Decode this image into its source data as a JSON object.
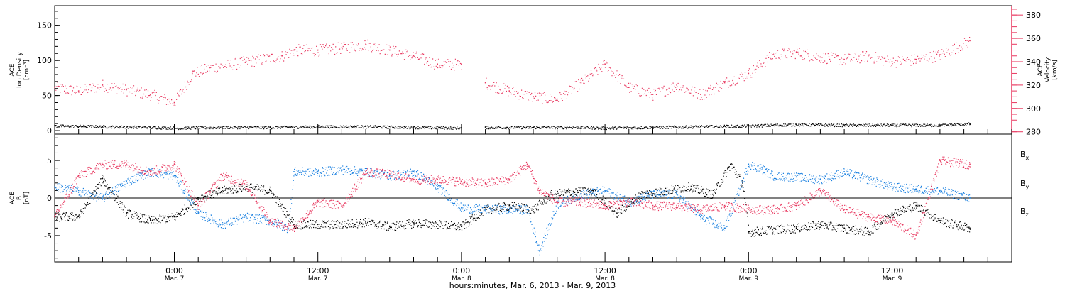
{
  "colors": {
    "black": "#000000",
    "blue": "#1a80e0",
    "pink": "#e8375f"
  },
  "x_axis": {
    "xlabel": "hours:minutes, Mar. 6, 2013 - Mar. 9, 2013",
    "hour_range": [
      -10,
      70
    ],
    "ticks": [
      {
        "time": "0:00",
        "date": "Mar. 7",
        "hour": 0
      },
      {
        "time": "12:00",
        "date": "Mar. 7",
        "hour": 12
      },
      {
        "time": "0:00",
        "date": "Mar. 8",
        "hour": 24
      },
      {
        "time": "12:00",
        "date": "Mar. 8",
        "hour": 36
      },
      {
        "time": "0:00",
        "date": "Mar. 9",
        "hour": 48
      },
      {
        "time": "12:00",
        "date": "Mar. 9",
        "hour": 60
      }
    ]
  },
  "chart_data": [
    {
      "type": "scatter",
      "title": "",
      "ylabel": "ACE Ion Density [cm⁻³]",
      "ylabel_lines": [
        "ACE",
        "Ion Density",
        "[cm⁻³]"
      ],
      "ylim": [
        -5,
        178
      ],
      "yticks": [
        0,
        50,
        100,
        150
      ],
      "y2label": "ACE Velocity [km/s]",
      "y2label_lines": [
        "ACE",
        "Velocity",
        "[km/s]"
      ],
      "y2lim": [
        278,
        388
      ],
      "y2ticks": [
        280,
        300,
        320,
        340,
        360,
        380
      ],
      "series": [
        {
          "axis": "left",
          "color": "black",
          "x": [
            -10,
            -6,
            -2,
            0,
            4,
            8,
            12,
            16,
            20,
            24,
            24.8,
            26,
            30,
            34,
            36,
            40,
            44,
            48,
            52,
            56,
            60,
            64,
            66.5
          ],
          "y": [
            7,
            6,
            5,
            4,
            5,
            5,
            6,
            6,
            5,
            4,
            null,
            5,
            5,
            5,
            4,
            5,
            6,
            7,
            9,
            8,
            8,
            8,
            10
          ]
        },
        {
          "axis": "right",
          "color": "pink",
          "x": [
            -10,
            -8,
            -6,
            -4,
            -2,
            0,
            1.5,
            3,
            6,
            9,
            10,
            12,
            14,
            16,
            18,
            20,
            22,
            24,
            24.8,
            26,
            28,
            30,
            32,
            34,
            36,
            38,
            40,
            42,
            44,
            46,
            48,
            50,
            52,
            54,
            56,
            58,
            60,
            62,
            64,
            66.5
          ],
          "y": [
            318,
            315,
            320,
            316,
            312,
            305,
            330,
            335,
            340,
            345,
            350,
            350,
            352,
            355,
            350,
            345,
            338,
            338,
            null,
            322,
            315,
            310,
            308,
            322,
            338,
            318,
            312,
            320,
            312,
            322,
            330,
            346,
            348,
            344,
            342,
            345,
            340,
            342,
            346,
            358
          ]
        }
      ]
    },
    {
      "type": "scatter",
      "title": "",
      "ylabel": "ACE B [nT]",
      "ylabel_lines": [
        "ACE",
        "B",
        "[nT]"
      ],
      "ylim": [
        -8.5,
        8.5
      ],
      "yticks": [
        -5,
        0,
        5
      ],
      "zero_line": true,
      "legend": {
        "placement": "right",
        "entries": [
          {
            "label": "B",
            "sub": "x",
            "color": "black"
          },
          {
            "label": "B",
            "sub": "y",
            "color": "blue"
          },
          {
            "label": "B",
            "sub": "z",
            "color": "pink"
          }
        ]
      },
      "series": [
        {
          "name": "Bx",
          "color": "black",
          "x": [
            -10,
            -8,
            -6,
            -4,
            -2,
            0,
            2,
            4,
            6,
            8,
            10,
            12,
            14,
            16,
            18,
            20,
            22,
            24,
            26,
            28,
            30,
            31.5,
            33,
            35,
            37,
            39,
            41,
            43,
            45,
            46.5,
            47.5,
            48,
            50,
            52,
            54,
            56,
            58,
            60,
            62,
            64,
            66.5
          ],
          "y": [
            -2.5,
            -2.4,
            2.6,
            -2,
            -3,
            -2.5,
            0,
            1,
            1.5,
            1,
            -3.5,
            -3.5,
            -3.5,
            -3.2,
            -3.8,
            -3.3,
            -3.5,
            -3.8,
            -1.5,
            -1,
            -1.5,
            0.5,
            0.8,
            1,
            -2,
            0.5,
            1,
            1.5,
            0.5,
            4.5,
            2,
            -4.5,
            -4.2,
            -4,
            -3.5,
            -4,
            -4.5,
            -2,
            -1,
            -3,
            -4
          ]
        },
        {
          "name": "By",
          "color": "blue",
          "x": [
            -10,
            -8,
            -6,
            -4,
            -2,
            0,
            2,
            4,
            6,
            8,
            9.5,
            10,
            12,
            14,
            16,
            18,
            20,
            22,
            24,
            26,
            28,
            29.5,
            30.5,
            32,
            34,
            36,
            38,
            40,
            42,
            44,
            46,
            48,
            49,
            50,
            52,
            54,
            56,
            58,
            60,
            62,
            64,
            66.5
          ],
          "y": [
            1.5,
            1,
            0,
            2.2,
            3.5,
            3,
            -2,
            -3.5,
            -2.5,
            -3,
            -4,
            3.5,
            3.5,
            3.8,
            3.5,
            3,
            3.5,
            1.5,
            -1.3,
            -1.5,
            -1.5,
            -1.5,
            -7,
            -0.8,
            0.5,
            1,
            -0.5,
            0.5,
            0.5,
            -2.5,
            -4,
            4.5,
            4,
            3,
            2.8,
            2.5,
            3.5,
            2.5,
            1.5,
            1.2,
            1,
            0
          ]
        },
        {
          "name": "Bz",
          "color": "pink",
          "x": [
            -10,
            -8,
            -6,
            -4,
            -2,
            0,
            2,
            4,
            6,
            8,
            10,
            12,
            14,
            16,
            18,
            20,
            22,
            24,
            26,
            28,
            29.5,
            30.5,
            32,
            34,
            36,
            38,
            40,
            42,
            44,
            46,
            48,
            50,
            52,
            54,
            56,
            58,
            60,
            62,
            64,
            66.5
          ],
          "y": [
            -2.5,
            3,
            4.5,
            4.5,
            3.5,
            4.5,
            -1,
            3,
            1.8,
            -3,
            -4,
            -0.5,
            -1,
            3.5,
            3.2,
            2.5,
            2.5,
            2.2,
            2,
            2.5,
            4.5,
            1,
            -0.5,
            -0.5,
            -1,
            -0.5,
            -1,
            -1,
            -1.5,
            -1,
            -1.5,
            -1.5,
            -1,
            1,
            -1.5,
            -2.5,
            -3,
            -5,
            5,
            4.5
          ]
        }
      ]
    }
  ]
}
